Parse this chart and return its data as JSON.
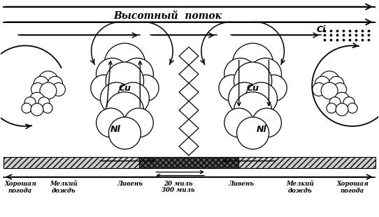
{
  "title": "Высотный  поток",
  "ci_label": "Ci",
  "cu_label": "Cu",
  "nl_label": "Nl",
  "bg_color": "#ffffff",
  "line_color": "#000000",
  "figsize": [
    5.42,
    3.11
  ],
  "dpi": 100,
  "bottom_labels": [
    [
      28,
      "Хорошая\nпогода"
    ],
    [
      90,
      "Мелкий\nдождь"
    ],
    [
      185,
      "Ливень"
    ],
    [
      255,
      "20 миль"
    ],
    [
      255,
      "300 миль"
    ],
    [
      345,
      "Ливень"
    ],
    [
      430,
      "Мелкий\nдождь"
    ],
    [
      505,
      "Хорошая\nпогода"
    ]
  ]
}
